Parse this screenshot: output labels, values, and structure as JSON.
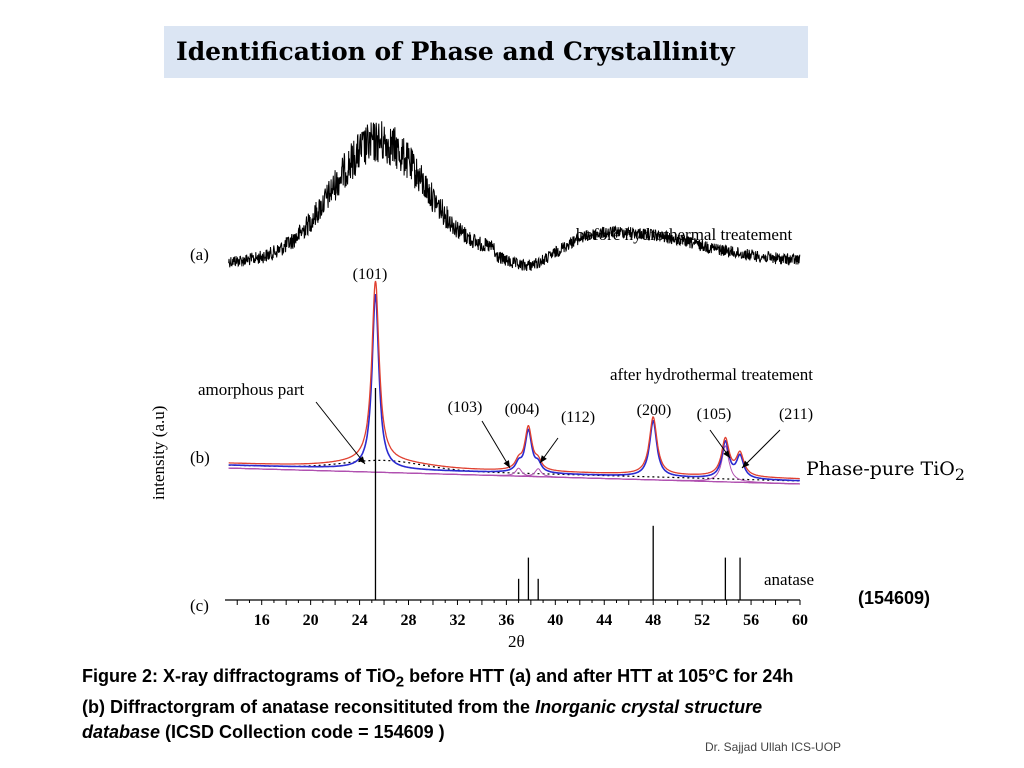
{
  "slide": {
    "title": "Identification of Phase and Crystallinity",
    "phase_label_main": "Phase-pure TiO",
    "phase_label_sub": "2",
    "code": "(154609)",
    "credit": "Dr. Sajjad Ullah ICS-UOP",
    "caption": {
      "p1": "Figure 2:  X-ray diffractograms of TiO",
      "p1_sub": "2",
      "p2": " before HTT (a) and after HTT at 105°C for 24h",
      "p3": "(b) Diffractorgram of anatase reconsitituted from the ",
      "p3_ital": "Inorganic crystal structure",
      "p4_ital": "database",
      "p4": " (ICSD Collection code = 154609 )"
    }
  },
  "chart_data": {
    "type": "line",
    "xlabel": "2θ",
    "ylabel": "intensity (a.u)",
    "xlim": [
      13,
      60
    ],
    "xticks": [
      "16",
      "20",
      "24",
      "28",
      "32",
      "36",
      "40",
      "44",
      "48",
      "52",
      "56",
      "60"
    ],
    "panel_labels": [
      "(a)",
      "(b)",
      "(c)"
    ],
    "panel_texts": {
      "a": "bofore hydrothermal treatement",
      "b": "after hydrothermal treatement",
      "c": "anatase",
      "amorphous": "amorphous part"
    },
    "peaks": [
      {
        "label": "(101)",
        "x": 25.3,
        "height": 1.0
      },
      {
        "label": "(103)",
        "x": 37.0,
        "height": 0.1
      },
      {
        "label": "(004)",
        "x": 37.8,
        "height": 0.2
      },
      {
        "label": "(112)",
        "x": 38.6,
        "height": 0.1
      },
      {
        "label": "(200)",
        "x": 48.0,
        "height": 0.35
      },
      {
        "label": "(105)",
        "x": 53.9,
        "height": 0.2
      },
      {
        "label": "(211)",
        "x": 55.1,
        "height": 0.2
      }
    ],
    "series": [
      {
        "key": "a",
        "color": "#000000"
      },
      {
        "key": "b_fit",
        "color": "#e04030"
      },
      {
        "key": "b_obs",
        "color": "#2a2ad0"
      },
      {
        "key": "b_comp",
        "color": "#b050b0"
      },
      {
        "key": "amorphous",
        "color": "#000000"
      },
      {
        "key": "c",
        "color": "#000000"
      }
    ]
  }
}
